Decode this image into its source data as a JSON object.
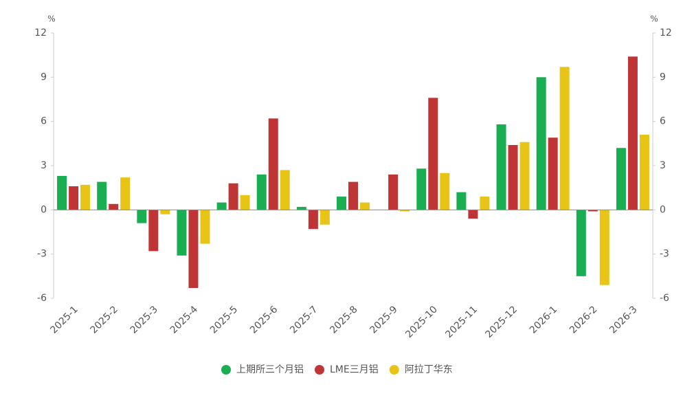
{
  "chart_data": {
    "type": "bar",
    "y_unit": "%",
    "y2_unit": "%",
    "categories": [
      "2025-1",
      "2025-2",
      "2025-3",
      "2025-4",
      "2025-5",
      "2025-6",
      "2025-7",
      "2025-8",
      "2025-9",
      "2025-10",
      "2025-11",
      "2025-12",
      "2026-1",
      "2026-2",
      "2026-3"
    ],
    "series": [
      {
        "name": "上期所三个月铝",
        "color": "#1aae52",
        "values": [
          2.3,
          1.9,
          -0.9,
          -3.1,
          0.5,
          2.4,
          0.2,
          0.9,
          0,
          2.8,
          1.2,
          5.8,
          9.0,
          -4.5,
          4.2
        ]
      },
      {
        "name": "LME三月铝",
        "color": "#bf3434",
        "values": [
          1.6,
          0.4,
          -2.8,
          -5.3,
          1.8,
          6.2,
          -1.3,
          1.9,
          2.4,
          7.6,
          -0.6,
          4.4,
          4.9,
          -0.1,
          10.4
        ]
      },
      {
        "name": "阿拉丁华东",
        "color": "#e8c416",
        "values": [
          1.7,
          2.2,
          -0.3,
          -2.3,
          1.0,
          2.7,
          -1.0,
          0.5,
          -0.1,
          2.5,
          0.9,
          4.6,
          9.7,
          -5.1,
          5.1
        ]
      }
    ],
    "ylim": [
      -6,
      12
    ],
    "yticks": [
      -6,
      -3,
      0,
      3,
      6,
      9,
      12
    ],
    "y2lim": [
      -6,
      12
    ],
    "y2ticks": [
      -6,
      -3,
      0,
      3,
      6,
      9,
      12
    ],
    "legend": "bottom"
  }
}
